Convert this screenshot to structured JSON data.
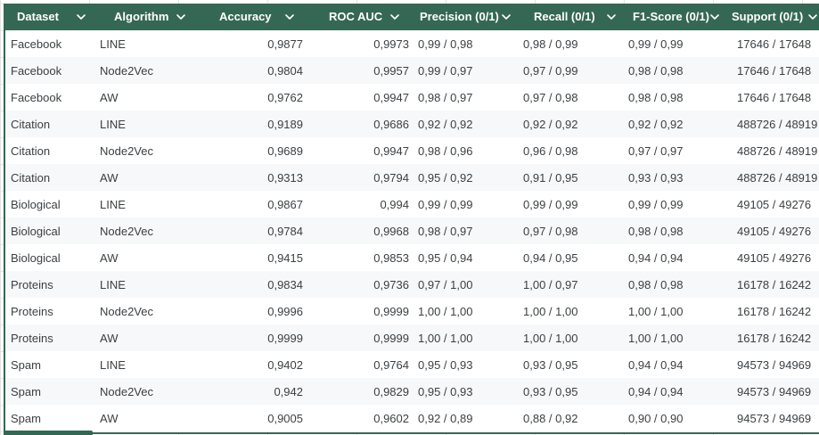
{
  "columns": [
    {
      "label": "Dataset"
    },
    {
      "label": "Algorithm"
    },
    {
      "label": "Accuracy"
    },
    {
      "label": "ROC AUC"
    },
    {
      "label": "Precision (0/1)"
    },
    {
      "label": "Recall (0/1)"
    },
    {
      "label": "F1-Score (0/1)"
    },
    {
      "label": "Support (0/1)"
    }
  ],
  "rows": [
    [
      "Facebook",
      "LINE",
      "0,9877",
      "0,9973",
      "0,99 / 0,98",
      "0,98 / 0,99",
      "0,99 / 0,99",
      "17646 / 17648"
    ],
    [
      "Facebook",
      "Node2Vec",
      "0,9804",
      "0,9957",
      "0,99 / 0,97",
      "0,97 / 0,99",
      "0,98 / 0,98",
      "17646 / 17648"
    ],
    [
      "Facebook",
      "AW",
      "0,9762",
      "0,9947",
      "0,98 / 0,97",
      "0,97 / 0,98",
      "0,98 / 0,98",
      "17646 / 17648"
    ],
    [
      "Citation",
      "LINE",
      "0,9189",
      "0,9686",
      "0,92 / 0,92",
      "0,92 / 0,92",
      "0,92 / 0,92",
      "488726 / 48919"
    ],
    [
      "Citation",
      "Node2Vec",
      "0,9689",
      "0,9947",
      "0,98 / 0,96",
      "0,96 / 0,98",
      "0,97 / 0,97",
      "488726 / 48919"
    ],
    [
      "Citation",
      "AW",
      "0,9313",
      "0,9794",
      "0,95 / 0,92",
      "0,91 / 0,95",
      "0,93 / 0,93",
      "488726 / 48919"
    ],
    [
      "Biological",
      "LINE",
      "0,9867",
      "0,994",
      "0,99 / 0,99",
      "0,99 / 0,99",
      "0,99 / 0,99",
      "49105 / 49276"
    ],
    [
      "Biological",
      "Node2Vec",
      "0,9784",
      "0,9968",
      "0,98 / 0,97",
      "0,97 / 0,98",
      "0,98 / 0,98",
      "49105 / 49276"
    ],
    [
      "Biological",
      "AW",
      "0,9415",
      "0,9853",
      "0,95 / 0,94",
      "0,94 / 0,95",
      "0,94 / 0,94",
      "49105 / 49276"
    ],
    [
      "Proteins",
      "LINE",
      "0,9834",
      "0,9736",
      "0,97 / 1,00",
      "1,00 / 0,97",
      "0,98 / 0,98",
      "16178 / 16242"
    ],
    [
      "Proteins",
      "Node2Vec",
      "0,9996",
      "0,9999",
      "1,00 / 1,00",
      "1,00 / 1,00",
      "1,00 / 1,00",
      "16178 / 16242"
    ],
    [
      "Proteins",
      "AW",
      "0,9999",
      "0,9999",
      "1,00 / 1,00",
      "1,00 / 1,00",
      "1,00 / 1,00",
      "16178 / 16242"
    ],
    [
      "Spam",
      "LINE",
      "0,9402",
      "0,9764",
      "0,95 / 0,93",
      "0,93 / 0,95",
      "0,94 / 0,94",
      "94573 / 94969"
    ],
    [
      "Spam",
      "Node2Vec",
      "0,942",
      "0,9829",
      "0,95 / 0,93",
      "0,93 / 0,95",
      "0,94 / 0,94",
      "94573 / 94969"
    ],
    [
      "Spam",
      "AW",
      "0,9005",
      "0,9602",
      "0,92 / 0,89",
      "0,88 / 0,92",
      "0,90 / 0,90",
      "94573 / 94969"
    ]
  ],
  "icons": {
    "column_menu": "chevron-down-icon"
  },
  "colors": {
    "header_bg": "#356854",
    "header_text": "#ffffff",
    "row_alt": "#f6f8f9",
    "cell_text": "#3c4043"
  }
}
